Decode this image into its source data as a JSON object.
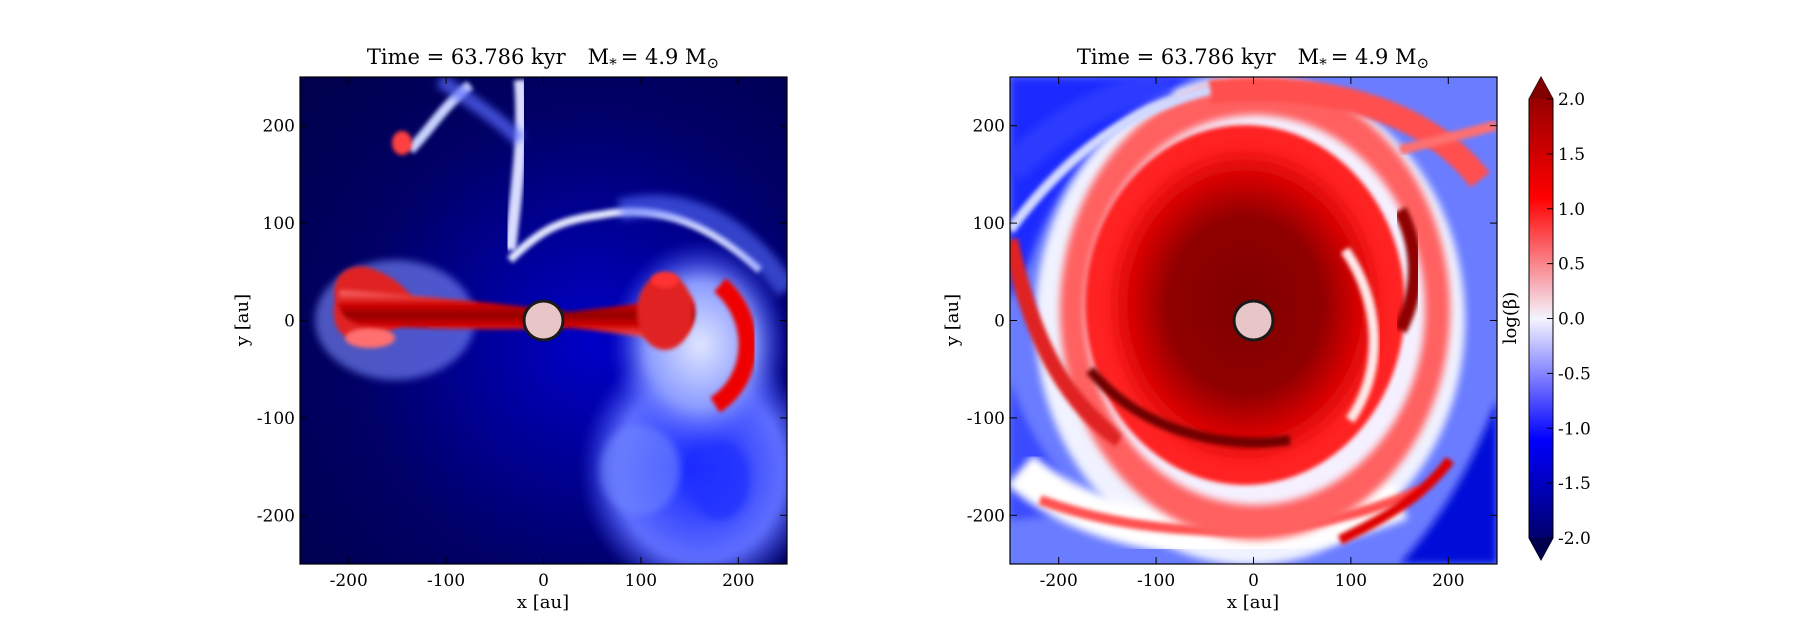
{
  "colors": {
    "low": "#00004c",
    "mid_low": "#0000ff",
    "zero": "#f4f4ff",
    "mid_high": "#ff0000",
    "high": "#800000",
    "sink_fill": "#e8c6c8",
    "sink_edge": "#1a1a1a"
  },
  "panels": [
    {
      "id": "edge-on",
      "title_left": "Time = 63.786 kyr",
      "title_right": "M",
      "title_sub_star": "*",
      "title_mass": "= 4.9 M",
      "title_sub_sun": "⊙",
      "xlabel": "x [au]",
      "ylabel": "y [au]"
    },
    {
      "id": "face-on",
      "title_left": "Time = 63.786 kyr",
      "title_right": "M",
      "title_sub_star": "*",
      "title_mass": "= 4.9 M",
      "title_sub_sun": "⊙",
      "xlabel": "x [au]",
      "ylabel": "y [au]"
    }
  ],
  "colorbar": {
    "label": "log(β)",
    "ticks": [
      "2.0",
      "1.5",
      "1.0",
      "0.5",
      "0.0",
      "-0.5",
      "-1.0",
      "-1.5",
      "-2.0"
    ]
  },
  "chart_data": [
    {
      "type": "heatmap",
      "title": "Time = 63.786 kyr   M* = 4.9 M⊙",
      "xlabel": "x [au]",
      "ylabel": "y [au]",
      "xlim": [
        -250,
        250
      ],
      "ylim": [
        -250,
        250
      ],
      "x_ticks": [
        -200,
        -100,
        0,
        100,
        200
      ],
      "y_ticks": [
        -200,
        -100,
        0,
        100,
        200
      ],
      "x_tick_labels": [
        "-200",
        "-100",
        "0",
        "100",
        "200"
      ],
      "y_tick_labels": [
        "-200",
        "-100",
        "0",
        "100",
        "200"
      ],
      "value_label": "log(β)",
      "value_range": [
        -2.0,
        2.0
      ],
      "sink_particle": {
        "x": 0,
        "y": 0,
        "radius_au": 20
      },
      "colormap": "seismic",
      "grid": false
    },
    {
      "type": "heatmap",
      "title": "Time = 63.786 kyr   M* = 4.9 M⊙",
      "xlabel": "x [au]",
      "ylabel": "y [au]",
      "xlim": [
        -250,
        250
      ],
      "ylim": [
        -250,
        250
      ],
      "x_ticks": [
        -200,
        -100,
        0,
        100,
        200
      ],
      "y_ticks": [
        -200,
        -100,
        0,
        100,
        200
      ],
      "x_tick_labels": [
        "-200",
        "-100",
        "0",
        "100",
        "200"
      ],
      "y_tick_labels": [
        "-200",
        "-100",
        "0",
        "100",
        "200"
      ],
      "value_label": "log(β)",
      "value_range": [
        -2.0,
        2.0
      ],
      "sink_particle": {
        "x": 0,
        "y": 0,
        "radius_au": 20
      },
      "colormap": "seismic",
      "grid": false
    }
  ]
}
